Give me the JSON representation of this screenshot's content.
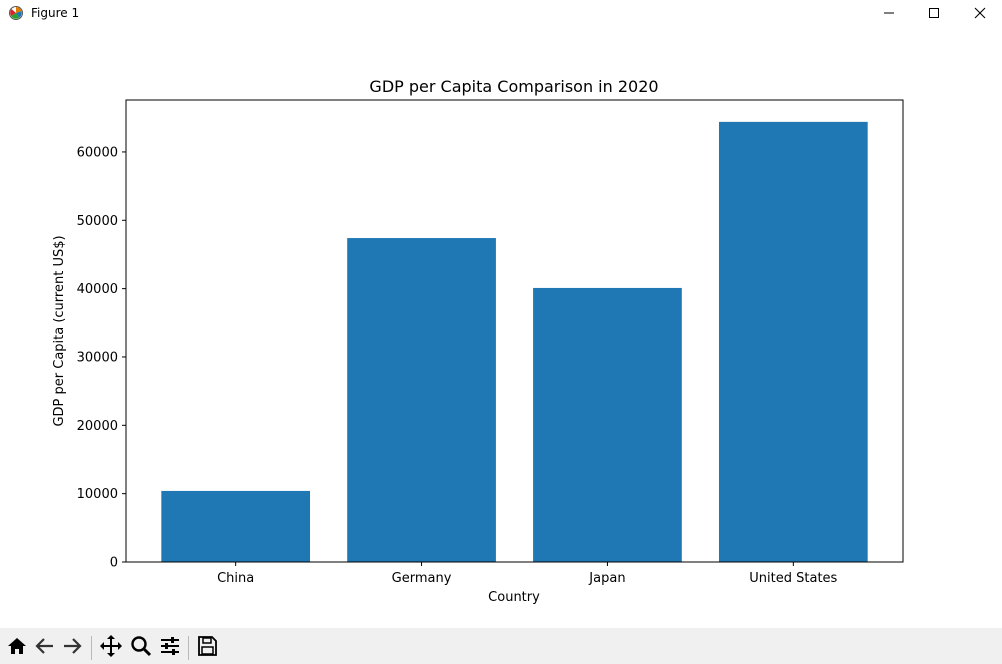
{
  "window": {
    "title": "Figure 1",
    "icons": {
      "app": "matplotlib-figure-icon",
      "minimize": "minimize-icon",
      "maximize": "maximize-icon",
      "close": "close-icon"
    }
  },
  "toolbar": {
    "buttons": [
      {
        "name": "home-button",
        "icon": "home-icon"
      },
      {
        "name": "back-button",
        "icon": "back-arrow-icon"
      },
      {
        "name": "forward-button",
        "icon": "forward-arrow-icon"
      },
      {
        "name": "pan-button",
        "icon": "move-icon"
      },
      {
        "name": "zoom-button",
        "icon": "zoom-icon"
      },
      {
        "name": "configure-subplots-button",
        "icon": "sliders-icon"
      },
      {
        "name": "save-button",
        "icon": "save-icon"
      }
    ]
  },
  "chart_data": {
    "type": "bar",
    "title": "GDP per Capita Comparison in 2020",
    "xlabel": "Country",
    "ylabel": "GDP per Capita (current US$)",
    "categories": [
      "China",
      "Germany",
      "Japan",
      "United States"
    ],
    "values": [
      10400,
      47400,
      40100,
      64400
    ],
    "ylim": [
      0,
      67600
    ],
    "yticks": [
      0,
      10000,
      20000,
      30000,
      40000,
      50000,
      60000
    ],
    "ytick_labels": [
      "0",
      "10000",
      "20000",
      "30000",
      "40000",
      "50000",
      "60000"
    ],
    "bar_color": "#1f77b4",
    "grid": false,
    "legend": "none"
  }
}
